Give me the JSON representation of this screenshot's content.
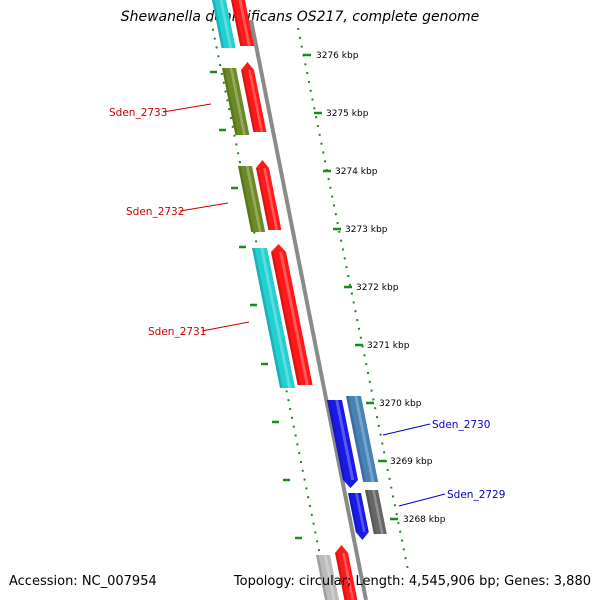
{
  "title": "Shewanella denitrificans OS217, complete genome",
  "footer": {
    "accession": "Accession: NC_007954",
    "summary": "Topology: circular; Length: 4,545,906 bp; Genes: 3,880"
  },
  "ticks": [
    "3276 kbp",
    "3275 kbp",
    "3274 kbp",
    "3273 kbp",
    "3272 kbp",
    "3271 kbp",
    "3270 kbp",
    "3269 kbp",
    "3268 kbp"
  ],
  "gene_labels": [
    "Sden_2733",
    "Sden_2732",
    "Sden_2731",
    "Sden_2730",
    "Sden_2729"
  ],
  "colors": {
    "backbone": "#8a8a8a",
    "scale_dots": "#1a8a1a",
    "cyan": "#22d0d0",
    "red": "#ff1a1a",
    "olive": "#6b8a22",
    "blue": "#1a1ae6",
    "steelblue": "#4682b4",
    "gray": "#666666",
    "lightgray": "#bbbbbb",
    "label_red": "#cc0000",
    "label_blue": "#0000cc"
  }
}
